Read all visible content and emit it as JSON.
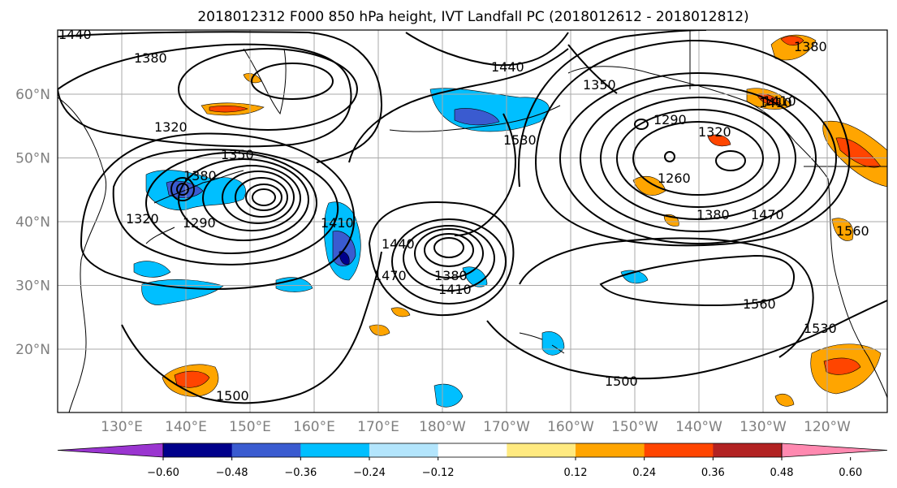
{
  "title": "2018012312 F000 850 hPa height, IVT Landfall PC (2018012612 - 2018012812)",
  "map": {
    "lat_labels": [
      "60°N",
      "50°N",
      "40°N",
      "30°N",
      "20°N"
    ],
    "lat_values": [
      60,
      50,
      40,
      30,
      20
    ],
    "lon_labels": [
      "130°E",
      "140°E",
      "150°E",
      "160°E",
      "170°E",
      "180°W",
      "170°W",
      "160°W",
      "150°W",
      "140°W",
      "130°W",
      "120°W"
    ],
    "lon_values": [
      130,
      140,
      150,
      160,
      170,
      180,
      190,
      200,
      210,
      220,
      230,
      240
    ],
    "contour_labels": [
      "1440",
      "1380",
      "1320",
      "1350",
      "1380",
      "1290",
      "1410",
      "1320",
      "1440",
      "1470",
      "1380",
      "1410",
      "1530",
      "1440",
      "1350",
      "1290",
      "1320",
      "1410",
      "1260",
      "1380",
      "1470",
      "1560",
      "1380",
      "1410",
      "1560",
      "1530",
      "1500",
      "1500"
    ],
    "fill_colors": [
      "#9a35d0",
      "#00008b",
      "#3a5bd0",
      "#00bfff",
      "#b3e5fc",
      "#ffffff",
      "#ffea80",
      "#ffa500",
      "#ff4500",
      "#b22222",
      "#ff89b0"
    ]
  },
  "colorbar": {
    "ticks": [
      "−0.60",
      "−0.48",
      "−0.36",
      "−0.24",
      "−0.12",
      "0.12",
      "0.24",
      "0.36",
      "0.48",
      "0.60"
    ],
    "tick_values": [
      -0.6,
      -0.48,
      -0.36,
      -0.24,
      -0.12,
      0.12,
      0.24,
      0.36,
      0.48,
      0.6
    ],
    "colors": [
      "#9a35d0",
      "#00008b",
      "#3a5bd0",
      "#00bfff",
      "#b3e5fc",
      "#ffffff",
      "#ffea80",
      "#ffa500",
      "#ff4500",
      "#b22222",
      "#ff89b0"
    ]
  }
}
